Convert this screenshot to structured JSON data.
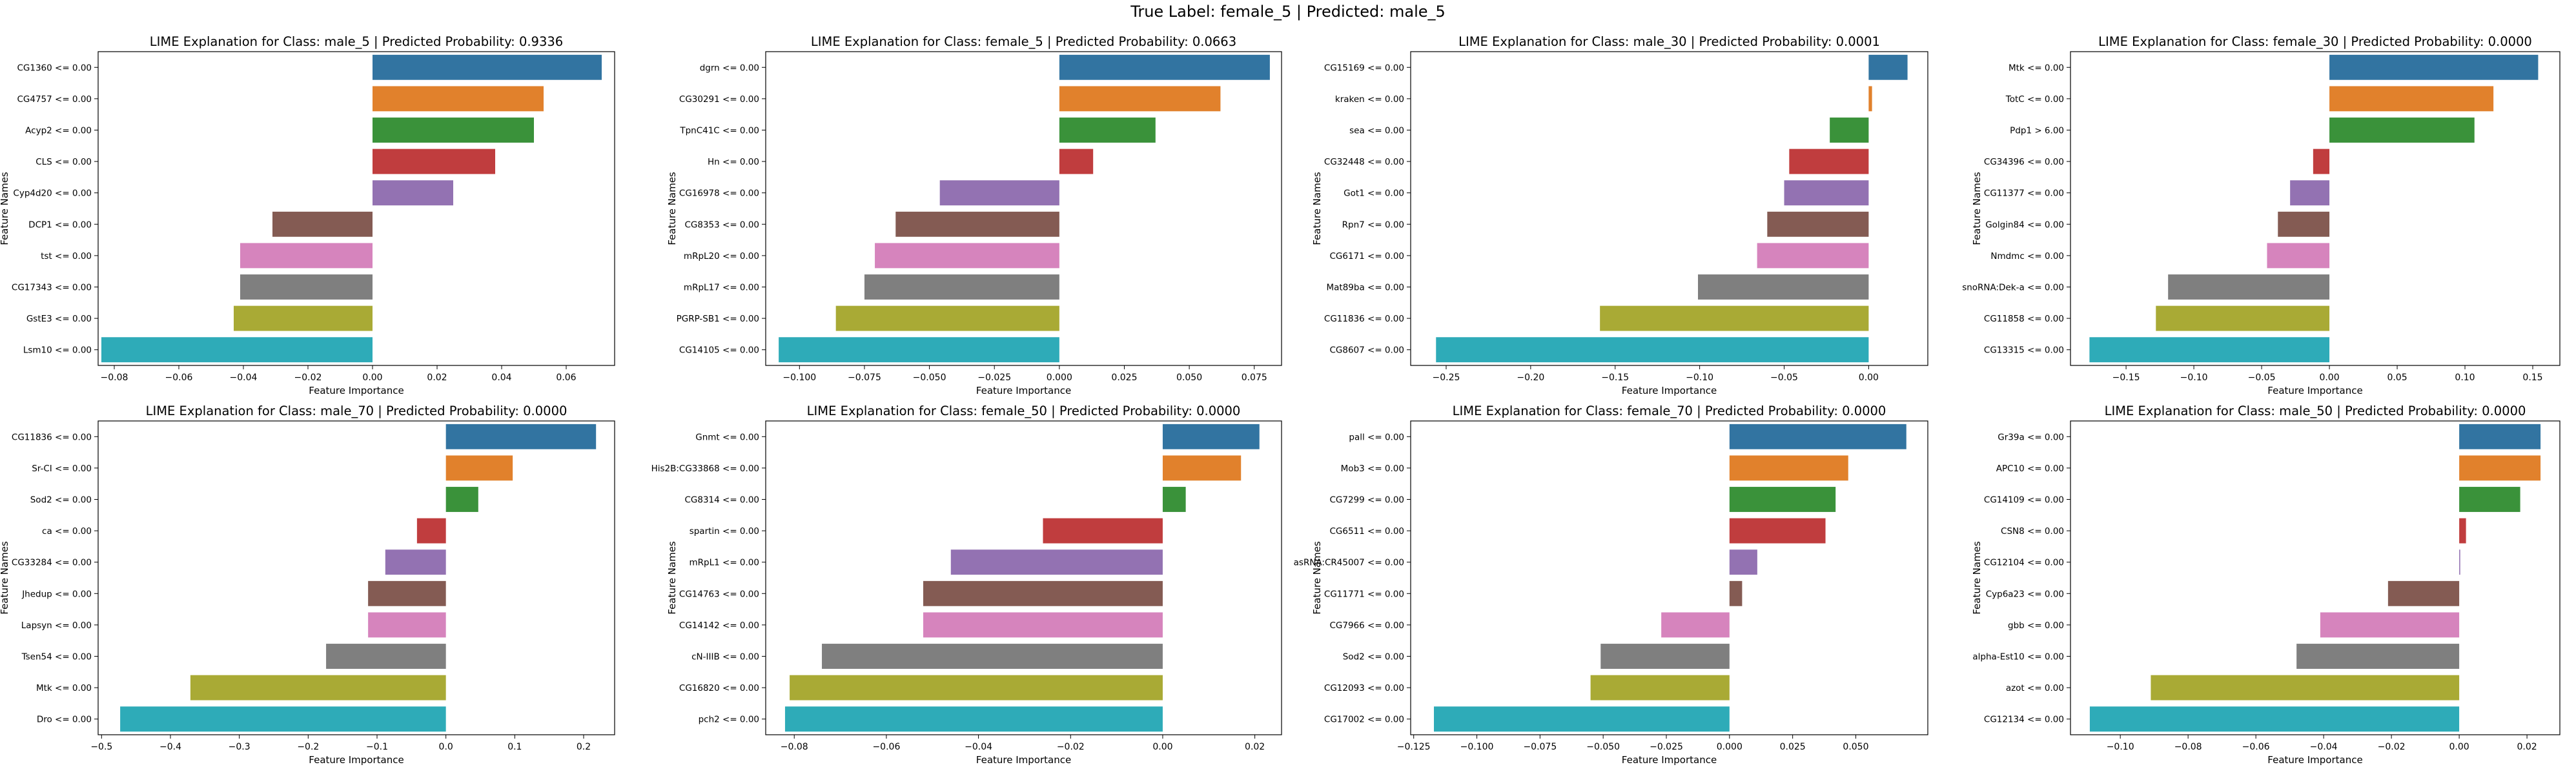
{
  "figure": {
    "suptitle": "True Label: female_5 | Predicted: male_5"
  },
  "chart_data": [
    {
      "type": "bar",
      "orientation": "horizontal",
      "title": "LIME Explanation for Class: male_5 | Predicted Probability: 0.9336",
      "xlabel": "Feature Importance",
      "ylabel": "Feature Names",
      "xlim": [
        -0.085,
        0.075
      ],
      "xticks": [
        -0.08,
        -0.06,
        -0.04,
        -0.02,
        0,
        0.02,
        0.04,
        0.06
      ],
      "xtick_labels": [
        "−0.08",
        "−0.06",
        "−0.04",
        "−0.02",
        "0.00",
        "0.02",
        "0.04",
        "0.06"
      ],
      "categories": [
        "CG1360 <= 0.00",
        "CG4757 <= 0.00",
        "Acyp2 <= 0.00",
        "CLS <= 0.00",
        "Cyp4d20 <= 0.00",
        "DCP1 <= 0.00",
        "tst <= 0.00",
        "CG17343 <= 0.00",
        "GstE3 <= 0.00",
        "Lsm10 <= 0.00"
      ],
      "values": [
        0.071,
        0.053,
        0.05,
        0.038,
        0.025,
        -0.031,
        -0.041,
        -0.041,
        -0.043,
        -0.084
      ]
    },
    {
      "type": "bar",
      "orientation": "horizontal",
      "title": "LIME Explanation for Class: female_5 | Predicted Probability: 0.0663",
      "xlabel": "Feature Importance",
      "ylabel": "Feature Names",
      "xlim": [
        -0.113,
        0.0855
      ],
      "xticks": [
        -0.1,
        -0.075,
        -0.05,
        -0.025,
        0,
        0.025,
        0.05,
        0.075
      ],
      "xtick_labels": [
        "−0.100",
        "−0.075",
        "−0.050",
        "−0.025",
        "0.000",
        "0.025",
        "0.050",
        "0.075"
      ],
      "categories": [
        "dgrn <= 0.00",
        "CG30291 <= 0.00",
        "TpnC41C <= 0.00",
        "Hn <= 0.00",
        "CG16978 <= 0.00",
        "CG8353 <= 0.00",
        "mRpL20 <= 0.00",
        "mRpL17 <= 0.00",
        "PGRP-SB1 <= 0.00",
        "CG14105 <= 0.00"
      ],
      "values": [
        0.081,
        0.062,
        0.037,
        0.013,
        -0.046,
        -0.063,
        -0.071,
        -0.075,
        -0.086,
        -0.108
      ]
    },
    {
      "type": "bar",
      "orientation": "horizontal",
      "title": "LIME Explanation for Class: male_30 | Predicted Probability: 0.0001",
      "xlabel": "Feature Importance",
      "ylabel": "Feature Names",
      "xlim": [
        -0.271,
        0.035
      ],
      "xticks": [
        -0.25,
        -0.2,
        -0.15,
        -0.1,
        -0.05,
        0
      ],
      "xtick_labels": [
        "−0.25",
        "−0.20",
        "−0.15",
        "−0.10",
        "−0.05",
        "0.00"
      ],
      "categories": [
        "CG15169 <= 0.00",
        "kraken <= 0.00",
        "sea <= 0.00",
        "CG32448 <= 0.00",
        "Got1 <= 0.00",
        "Rpn7 <= 0.00",
        "CG6171 <= 0.00",
        "Mat89ba <= 0.00",
        "CG11836 <= 0.00",
        "CG8607 <= 0.00"
      ],
      "values": [
        0.023,
        0.002,
        -0.023,
        -0.047,
        -0.05,
        -0.06,
        -0.066,
        -0.101,
        -0.159,
        -0.256
      ]
    },
    {
      "type": "bar",
      "orientation": "horizontal",
      "title": "LIME Explanation for Class: female_30 | Predicted Probability: 0.0000",
      "xlabel": "Feature Importance",
      "ylabel": "Feature Names",
      "xlim": [
        -0.191,
        0.17
      ],
      "xticks": [
        -0.15,
        -0.1,
        -0.05,
        0,
        0.05,
        0.1,
        0.15
      ],
      "xtick_labels": [
        "−0.15",
        "−0.10",
        "−0.05",
        "0.00",
        "0.05",
        "0.10",
        "0.15"
      ],
      "categories": [
        "Mtk <= 0.00",
        "TotC <= 0.00",
        "Pdp1 > 6.00",
        "CG34396 <= 0.00",
        "CG11377 <= 0.00",
        "Golgin84 <= 0.00",
        "Nmdmc <= 0.00",
        "snoRNA:Dek-a <= 0.00",
        "CG11858 <= 0.00",
        "CG13315 <= 0.00"
      ],
      "values": [
        0.154,
        0.121,
        0.107,
        -0.012,
        -0.029,
        -0.038,
        -0.046,
        -0.119,
        -0.128,
        -0.177
      ]
    },
    {
      "type": "bar",
      "orientation": "horizontal",
      "title": "LIME Explanation for Class: male_70 | Predicted Probability: 0.0000",
      "xlabel": "Feature Importance",
      "ylabel": "Feature Names",
      "xlim": [
        -0.505,
        0.245
      ],
      "xticks": [
        -0.5,
        -0.4,
        -0.3,
        -0.2,
        -0.1,
        0,
        0.1,
        0.2
      ],
      "xtick_labels": [
        "−0.5",
        "−0.4",
        "−0.3",
        "−0.2",
        "−0.1",
        "0.0",
        "0.1",
        "0.2"
      ],
      "categories": [
        "CG11836 <= 0.00",
        "Sr-CI <= 0.00",
        "Sod2 <= 0.00",
        "ca <= 0.00",
        "CG33284 <= 0.00",
        "Jhedup <= 0.00",
        "Lapsyn <= 0.00",
        "Tsen54 <= 0.00",
        "Mtk <= 0.00",
        "Dro <= 0.00"
      ],
      "values": [
        0.218,
        0.097,
        0.047,
        -0.042,
        -0.088,
        -0.113,
        -0.113,
        -0.174,
        -0.371,
        -0.473
      ]
    },
    {
      "type": "bar",
      "orientation": "horizontal",
      "title": "LIME Explanation for Class: female_50 | Predicted Probability: 0.0000",
      "xlabel": "Feature Importance",
      "ylabel": "Feature Names",
      "xlim": [
        -0.0862,
        0.0258
      ],
      "xticks": [
        -0.08,
        -0.06,
        -0.04,
        -0.02,
        0,
        0.02
      ],
      "xtick_labels": [
        "−0.08",
        "−0.06",
        "−0.04",
        "−0.02",
        "0.00",
        "0.02"
      ],
      "categories": [
        "Gnmt <= 0.00",
        "His2B:CG33868 <= 0.00",
        "CG8314 <= 0.00",
        "spartin <= 0.00",
        "mRpL1 <= 0.00",
        "CG14763 <= 0.00",
        "CG14142 <= 0.00",
        "cN-IIIB <= 0.00",
        "CG16820 <= 0.00",
        "pch2 <= 0.00"
      ],
      "values": [
        0.021,
        0.017,
        0.005,
        -0.026,
        -0.046,
        -0.052,
        -0.052,
        -0.074,
        -0.081,
        -0.082
      ]
    },
    {
      "type": "bar",
      "orientation": "horizontal",
      "title": "LIME Explanation for Class: female_70 | Predicted Probability: 0.0000",
      "xlabel": "Feature Importance",
      "ylabel": "Feature Names",
      "xlim": [
        -0.1262,
        0.0785
      ],
      "xticks": [
        -0.125,
        -0.1,
        -0.075,
        -0.05,
        -0.025,
        0,
        0.025,
        0.05
      ],
      "xtick_labels": [
        "−0.125",
        "−0.100",
        "−0.075",
        "−0.050",
        "−0.025",
        "0.000",
        "0.025",
        "0.050"
      ],
      "categories": [
        "pall <= 0.00",
        "Mob3 <= 0.00",
        "CG7299 <= 0.00",
        "CG6511 <= 0.00",
        "asRNA:CR45007 <= 0.00",
        "CG11771 <= 0.00",
        "CG7966 <= 0.00",
        "Sod2 <= 0.00",
        "CG12093 <= 0.00",
        "CG17002 <= 0.00"
      ],
      "values": [
        0.07,
        0.047,
        0.042,
        0.038,
        0.011,
        0.005,
        -0.027,
        -0.051,
        -0.055,
        -0.117
      ]
    },
    {
      "type": "bar",
      "orientation": "horizontal",
      "title": "LIME Explanation for Class: male_50 | Predicted Probability: 0.0000",
      "xlabel": "Feature Importance",
      "ylabel": "Feature Names",
      "xlim": [
        -0.1147,
        0.0297
      ],
      "xticks": [
        -0.1,
        -0.08,
        -0.06,
        -0.04,
        -0.02,
        0,
        0.02
      ],
      "xtick_labels": [
        "−0.10",
        "−0.08",
        "−0.06",
        "−0.04",
        "−0.02",
        "0.00",
        "0.02"
      ],
      "categories": [
        "Gr39a <= 0.00",
        "APC10 <= 0.00",
        "CG14109 <= 0.00",
        "CSN8 <= 0.00",
        "CG12104 <= 0.00",
        "Cyp6a23 <= 0.00",
        "gbb <= 0.00",
        "alpha-Est10 <= 0.00",
        "azot <= 0.00",
        "CG12134 <= 0.00"
      ],
      "values": [
        0.024,
        0.024,
        0.018,
        0.002,
        0.0003,
        -0.021,
        -0.041,
        -0.048,
        -0.091,
        -0.109
      ]
    }
  ],
  "colors": {
    "bars": [
      "#3274a1",
      "#e1812c",
      "#3a923a",
      "#c03d3e",
      "#9372b2",
      "#845b53",
      "#d684bd",
      "#7f7f7f",
      "#a9aa35",
      "#2eabb8"
    ],
    "axes": "#000000",
    "background": "#ffffff"
  }
}
